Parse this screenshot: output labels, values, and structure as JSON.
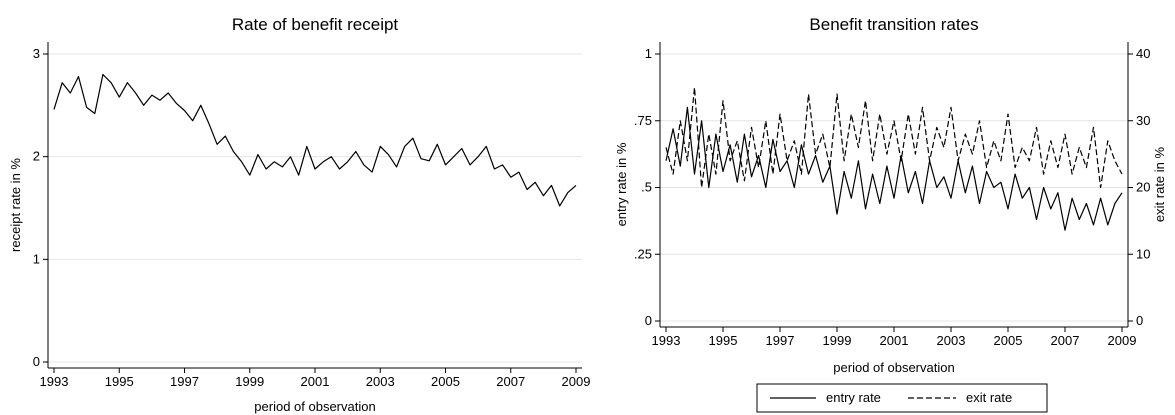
{
  "chart_data": [
    {
      "type": "line",
      "title": "Rate of benefit receipt",
      "xlabel": "period of observation",
      "ylabel": "receipt rate in %",
      "xlim": [
        1993,
        2009
      ],
      "ylim": [
        0,
        3
      ],
      "xticks": [
        1993,
        1995,
        1997,
        1999,
        2001,
        2003,
        2005,
        2007,
        2009
      ],
      "yticks": [
        0,
        1,
        2,
        3
      ],
      "grid": true,
      "series": [
        {
          "x": [
            1993.0,
            1993.25,
            1993.5,
            1993.75,
            1994.0,
            1994.25,
            1994.5,
            1994.75,
            1995.0,
            1995.25,
            1995.5,
            1995.75,
            1996.0,
            1996.25,
            1996.5,
            1996.75,
            1997.0,
            1997.25,
            1997.5,
            1997.75,
            1998.0,
            1998.25,
            1998.5,
            1998.75,
            1999.0,
            1999.25,
            1999.5,
            1999.75,
            2000.0,
            2000.25,
            2000.5,
            2000.75,
            2001.0,
            2001.25,
            2001.5,
            2001.75,
            2002.0,
            2002.25,
            2002.5,
            2002.75,
            2003.0,
            2003.25,
            2003.5,
            2003.75,
            2004.0,
            2004.25,
            2004.5,
            2004.75,
            2005.0,
            2005.25,
            2005.5,
            2005.75,
            2006.0,
            2006.25,
            2006.5,
            2006.75,
            2007.0,
            2007.25,
            2007.5,
            2007.75,
            2008.0,
            2008.25,
            2008.5,
            2008.75,
            2009.0
          ],
          "values": [
            2.46,
            2.72,
            2.62,
            2.78,
            2.48,
            2.42,
            2.8,
            2.72,
            2.58,
            2.72,
            2.62,
            2.5,
            2.6,
            2.55,
            2.62,
            2.52,
            2.45,
            2.35,
            2.5,
            2.32,
            2.12,
            2.2,
            2.05,
            1.95,
            1.82,
            2.02,
            1.88,
            1.95,
            1.9,
            2.0,
            1.82,
            2.1,
            1.88,
            1.95,
            2.0,
            1.88,
            1.95,
            2.05,
            1.92,
            1.85,
            2.1,
            2.02,
            1.9,
            2.1,
            2.18,
            1.98,
            1.96,
            2.12,
            1.92,
            2.0,
            2.08,
            1.92,
            2.0,
            2.1,
            1.88,
            1.92,
            1.8,
            1.85,
            1.68,
            1.75,
            1.62,
            1.72,
            1.52,
            1.65,
            1.72
          ]
        }
      ]
    },
    {
      "type": "line",
      "title": "Benefit transition rates",
      "xlabel": "period of observation",
      "ylabel": "entry rate in %",
      "ylabel_right": "exit rate in %",
      "xlim": [
        1993,
        2009
      ],
      "ylim": [
        0,
        1
      ],
      "ylim_right": [
        0,
        40
      ],
      "xticks": [
        1993,
        1995,
        1997,
        1999,
        2001,
        2003,
        2005,
        2007,
        2009
      ],
      "yticks": [
        0,
        0.25,
        0.5,
        0.75,
        1
      ],
      "yticklabels": [
        "0",
        ".25",
        ".5",
        ".75",
        "1"
      ],
      "yticks_right": [
        0,
        10,
        20,
        30,
        40
      ],
      "grid": true,
      "legend": "bottom",
      "series": [
        {
          "name": "entry rate",
          "axis": "left",
          "style": "solid",
          "x": [
            1993.0,
            1993.25,
            1993.5,
            1993.75,
            1994.0,
            1994.25,
            1994.5,
            1994.75,
            1995.0,
            1995.25,
            1995.5,
            1995.75,
            1996.0,
            1996.25,
            1996.5,
            1996.75,
            1997.0,
            1997.25,
            1997.5,
            1997.75,
            1998.0,
            1998.25,
            1998.5,
            1998.75,
            1999.0,
            1999.25,
            1999.5,
            1999.75,
            2000.0,
            2000.25,
            2000.5,
            2000.75,
            2001.0,
            2001.25,
            2001.5,
            2001.75,
            2002.0,
            2002.25,
            2002.5,
            2002.75,
            2003.0,
            2003.25,
            2003.5,
            2003.75,
            2004.0,
            2004.25,
            2004.5,
            2004.75,
            2005.0,
            2005.25,
            2005.5,
            2005.75,
            2006.0,
            2006.25,
            2006.5,
            2006.75,
            2007.0,
            2007.25,
            2007.5,
            2007.75,
            2008.0,
            2008.25,
            2008.5,
            2008.75,
            2009.0
          ],
          "values": [
            0.6,
            0.72,
            0.58,
            0.8,
            0.55,
            0.75,
            0.5,
            0.7,
            0.56,
            0.66,
            0.52,
            0.7,
            0.54,
            0.62,
            0.5,
            0.68,
            0.56,
            0.6,
            0.5,
            0.66,
            0.55,
            0.62,
            0.52,
            0.58,
            0.4,
            0.56,
            0.46,
            0.6,
            0.42,
            0.55,
            0.44,
            0.58,
            0.46,
            0.62,
            0.48,
            0.56,
            0.44,
            0.6,
            0.5,
            0.54,
            0.46,
            0.6,
            0.48,
            0.58,
            0.44,
            0.56,
            0.5,
            0.52,
            0.42,
            0.55,
            0.46,
            0.5,
            0.38,
            0.5,
            0.42,
            0.48,
            0.34,
            0.46,
            0.38,
            0.44,
            0.36,
            0.46,
            0.36,
            0.44,
            0.48
          ]
        },
        {
          "name": "exit rate",
          "axis": "right",
          "style": "dashed",
          "x": [
            1993.0,
            1993.25,
            1993.5,
            1993.75,
            1994.0,
            1994.25,
            1994.5,
            1994.75,
            1995.0,
            1995.25,
            1995.5,
            1995.75,
            1996.0,
            1996.25,
            1996.5,
            1996.75,
            1997.0,
            1997.25,
            1997.5,
            1997.75,
            1998.0,
            1998.25,
            1998.5,
            1998.75,
            1999.0,
            1999.25,
            1999.5,
            1999.75,
            2000.0,
            2000.25,
            2000.5,
            2000.75,
            2001.0,
            2001.25,
            2001.5,
            2001.75,
            2002.0,
            2002.25,
            2002.5,
            2002.75,
            2003.0,
            2003.25,
            2003.5,
            2003.75,
            2004.0,
            2004.25,
            2004.5,
            2004.75,
            2005.0,
            2005.25,
            2005.5,
            2005.75,
            2006.0,
            2006.25,
            2006.5,
            2006.75,
            2007.0,
            2007.25,
            2007.5,
            2007.75,
            2008.0,
            2008.25,
            2008.5,
            2008.75,
            2009.0
          ],
          "values": [
            26,
            22,
            30,
            24,
            35,
            20,
            28,
            22,
            33,
            24,
            27,
            21,
            29,
            23,
            30,
            22,
            31,
            24,
            27,
            22,
            34,
            25,
            28,
            23,
            34,
            24,
            31,
            26,
            33,
            24,
            31,
            25,
            30,
            24,
            31,
            25,
            32,
            24,
            29,
            26,
            32,
            24,
            28,
            25,
            30,
            23,
            27,
            24,
            31,
            23,
            26,
            24,
            29,
            22,
            27,
            23,
            28,
            22,
            26,
            23,
            29,
            20,
            27,
            24,
            22
          ]
        }
      ]
    }
  ]
}
